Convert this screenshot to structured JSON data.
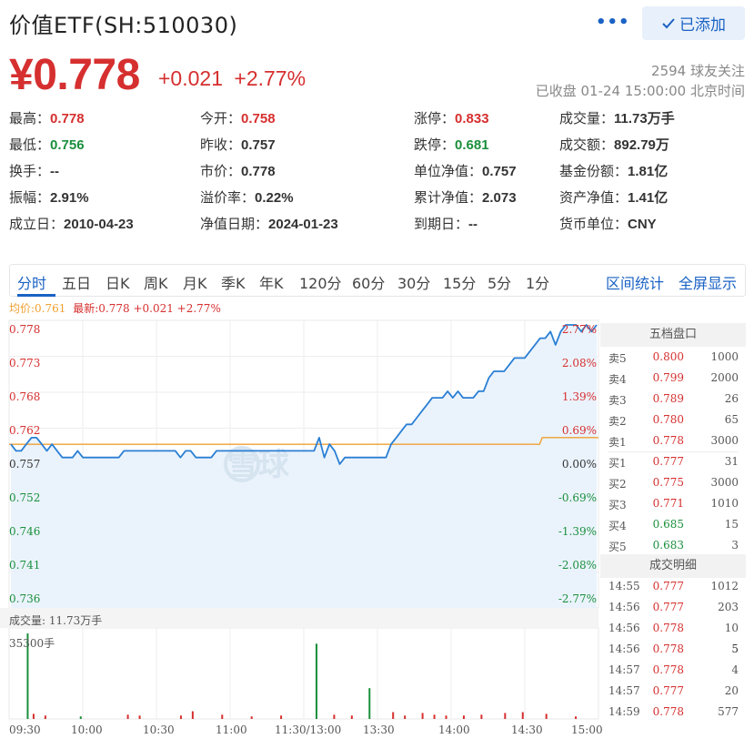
{
  "header": {
    "title": "价值ETF(SH:510030)",
    "more_icon": "more-dots-icon",
    "added_label": "已添加",
    "check_icon": "check-icon"
  },
  "quote": {
    "price": "¥0.778",
    "change": "+0.021",
    "change_pct": "+2.77%",
    "followers": "2594 球友关注",
    "status": "已收盘 01-24 15:00:00 北京时间"
  },
  "stats": [
    [
      {
        "label": "最高：",
        "value": "0.778",
        "color": "red"
      },
      {
        "label": "今开：",
        "value": "0.758",
        "color": "red"
      },
      {
        "label": "涨停：",
        "value": "0.833",
        "color": "red"
      },
      {
        "label": "成交量：",
        "value": "11.73万手",
        "color": ""
      }
    ],
    [
      {
        "label": "最低：",
        "value": "0.756",
        "color": "green"
      },
      {
        "label": "昨收：",
        "value": "0.757",
        "color": ""
      },
      {
        "label": "跌停：",
        "value": "0.681",
        "color": "green"
      },
      {
        "label": "成交额：",
        "value": "892.79万",
        "color": ""
      }
    ],
    [
      {
        "label": "换手：",
        "value": "--",
        "color": ""
      },
      {
        "label": "市价：",
        "value": "0.778",
        "color": ""
      },
      {
        "label": "单位净值：",
        "value": "0.757",
        "color": ""
      },
      {
        "label": "基金份额：",
        "value": "1.81亿",
        "color": ""
      }
    ],
    [
      {
        "label": "振幅：",
        "value": "2.91%",
        "color": ""
      },
      {
        "label": "溢价率：",
        "value": "0.22%",
        "color": ""
      },
      {
        "label": "累计净值：",
        "value": "2.073",
        "color": ""
      },
      {
        "label": "资产净值：",
        "value": "1.41亿",
        "color": ""
      }
    ],
    [
      {
        "label": "成立日：",
        "value": "2010-04-23",
        "color": ""
      },
      {
        "label": "净值日期：",
        "value": "2024-01-23",
        "color": ""
      },
      {
        "label": "到期日：",
        "value": "--",
        "color": ""
      },
      {
        "label": "货币单位：",
        "value": "CNY",
        "color": ""
      }
    ]
  ],
  "tabs": [
    "分时",
    "五日",
    "日K",
    "周K",
    "月K",
    "季K",
    "年K",
    "120分",
    "60分",
    "30分",
    "15分",
    "5分",
    "1分"
  ],
  "tab_actions": [
    "区间统计",
    "全屏显示"
  ],
  "chart_legend": {
    "avg": "均价:0.761",
    "latest": "最新:0.778 +0.021 +2.77%"
  },
  "colors": {
    "up": "#d62f2f",
    "down": "#1a8f3c",
    "price_line": "#2a7fd4",
    "avg_line": "#f0a030",
    "accent": "#1a62c4"
  },
  "chart_data": {
    "type": "line",
    "x_ticks": [
      "09:30",
      "10:00",
      "10:30",
      "11:00",
      "11:30/13:00",
      "13:30",
      "14:00",
      "14:30",
      "15:00"
    ],
    "price_axis": [
      "0.778",
      "0.773",
      "0.768",
      "0.762",
      "0.757",
      "0.752",
      "0.746",
      "0.741",
      "0.736"
    ],
    "pct_axis": [
      "2.77%",
      "2.08%",
      "1.39%",
      "0.69%",
      "0.00%",
      "-0.69%",
      "-1.39%",
      "-2.08%",
      "-2.77%"
    ],
    "ylim": [
      0.736,
      0.778
    ],
    "prev_close": 0.757,
    "avg_price": 0.761,
    "price_series": [
      0.76,
      0.759,
      0.759,
      0.76,
      0.761,
      0.761,
      0.76,
      0.759,
      0.76,
      0.759,
      0.758,
      0.758,
      0.758,
      0.759,
      0.758,
      0.758,
      0.758,
      0.758,
      0.758,
      0.758,
      0.758,
      0.758,
      0.759,
      0.759,
      0.759,
      0.759,
      0.759,
      0.759,
      0.759,
      0.759,
      0.759,
      0.759,
      0.759,
      0.758,
      0.759,
      0.759,
      0.758,
      0.758,
      0.758,
      0.758,
      0.759,
      0.759,
      0.759,
      0.759,
      0.759,
      0.759,
      0.759,
      0.759,
      0.759,
      0.759,
      0.759,
      0.759,
      0.759,
      0.759,
      0.759,
      0.759,
      0.759,
      0.759,
      0.759,
      0.759,
      0.761,
      0.758,
      0.76,
      0.759,
      0.757,
      0.758,
      0.758,
      0.758,
      0.758,
      0.758,
      0.758,
      0.758,
      0.758,
      0.758,
      0.76,
      0.761,
      0.762,
      0.763,
      0.763,
      0.764,
      0.765,
      0.766,
      0.767,
      0.767,
      0.767,
      0.768,
      0.767,
      0.768,
      0.767,
      0.767,
      0.767,
      0.768,
      0.768,
      0.77,
      0.771,
      0.771,
      0.771,
      0.772,
      0.773,
      0.773,
      0.773,
      0.774,
      0.775,
      0.776,
      0.776,
      0.777,
      0.775,
      0.777,
      0.778,
      0.778,
      0.778,
      0.777,
      0.778,
      0.777,
      0.778
    ],
    "avg_series_start": 0.76,
    "avg_series_end": 0.761,
    "volume_label": "成交量: 11.73万手",
    "volume_max_label": "35300手",
    "volume_bars": [
      {
        "t": 0.03,
        "v": 1.0,
        "c": "green"
      },
      {
        "t": 0.04,
        "v": 0.06,
        "c": "red"
      },
      {
        "t": 0.06,
        "v": 0.04,
        "c": "red"
      },
      {
        "t": 0.12,
        "v": 0.03,
        "c": "green"
      },
      {
        "t": 0.2,
        "v": 0.05,
        "c": "red"
      },
      {
        "t": 0.22,
        "v": 0.04,
        "c": "red"
      },
      {
        "t": 0.29,
        "v": 0.04,
        "c": "red"
      },
      {
        "t": 0.31,
        "v": 0.09,
        "c": "red"
      },
      {
        "t": 0.36,
        "v": 0.05,
        "c": "red"
      },
      {
        "t": 0.41,
        "v": 0.03,
        "c": "red"
      },
      {
        "t": 0.46,
        "v": 0.04,
        "c": "red"
      },
      {
        "t": 0.52,
        "v": 0.88,
        "c": "green"
      },
      {
        "t": 0.55,
        "v": 0.05,
        "c": "red"
      },
      {
        "t": 0.58,
        "v": 0.04,
        "c": "red"
      },
      {
        "t": 0.61,
        "v": 0.36,
        "c": "green"
      },
      {
        "t": 0.65,
        "v": 0.08,
        "c": "red"
      },
      {
        "t": 0.67,
        "v": 0.04,
        "c": "red"
      },
      {
        "t": 0.7,
        "v": 0.07,
        "c": "red"
      },
      {
        "t": 0.72,
        "v": 0.05,
        "c": "red"
      },
      {
        "t": 0.74,
        "v": 0.04,
        "c": "red"
      },
      {
        "t": 0.77,
        "v": 0.04,
        "c": "red"
      },
      {
        "t": 0.8,
        "v": 0.05,
        "c": "red"
      },
      {
        "t": 0.84,
        "v": 0.07,
        "c": "red"
      },
      {
        "t": 0.87,
        "v": 0.08,
        "c": "red"
      },
      {
        "t": 0.91,
        "v": 0.06,
        "c": "red"
      },
      {
        "t": 0.96,
        "v": 0.03,
        "c": "red"
      }
    ]
  },
  "order_book": {
    "title": "五档盘口",
    "rows": [
      {
        "label": "卖5",
        "price": "0.800",
        "vol": "1000",
        "color": "red"
      },
      {
        "label": "卖4",
        "price": "0.799",
        "vol": "2000",
        "color": "red"
      },
      {
        "label": "卖3",
        "price": "0.789",
        "vol": "26",
        "color": "red"
      },
      {
        "label": "卖2",
        "price": "0.780",
        "vol": "65",
        "color": "red"
      },
      {
        "label": "卖1",
        "price": "0.778",
        "vol": "3000",
        "color": "red"
      },
      {
        "label": "买1",
        "price": "0.777",
        "vol": "31",
        "color": "red"
      },
      {
        "label": "买2",
        "price": "0.775",
        "vol": "3000",
        "color": "red"
      },
      {
        "label": "买3",
        "price": "0.771",
        "vol": "1010",
        "color": "red"
      },
      {
        "label": "买4",
        "price": "0.685",
        "vol": "15",
        "color": "green"
      },
      {
        "label": "买5",
        "price": "0.683",
        "vol": "3",
        "color": "green"
      }
    ]
  },
  "trades": {
    "title": "成交明细",
    "rows": [
      {
        "time": "14:55",
        "price": "0.777",
        "vol": "1012",
        "pc": "red",
        "vc": "green"
      },
      {
        "time": "14:56",
        "price": "0.777",
        "vol": "203",
        "pc": "red",
        "vc": "green"
      },
      {
        "time": "14:56",
        "price": "0.778",
        "vol": "10",
        "pc": "red",
        "vc": "red"
      },
      {
        "time": "14:56",
        "price": "0.778",
        "vol": "5",
        "pc": "red",
        "vc": "dark"
      },
      {
        "time": "14:57",
        "price": "0.778",
        "vol": "4",
        "pc": "red",
        "vc": "red"
      },
      {
        "time": "14:57",
        "price": "0.777",
        "vol": "20",
        "pc": "red",
        "vc": "green"
      },
      {
        "time": "14:59",
        "price": "0.778",
        "vol": "577",
        "pc": "red",
        "vc": "red"
      }
    ]
  },
  "watermark": "雪球"
}
